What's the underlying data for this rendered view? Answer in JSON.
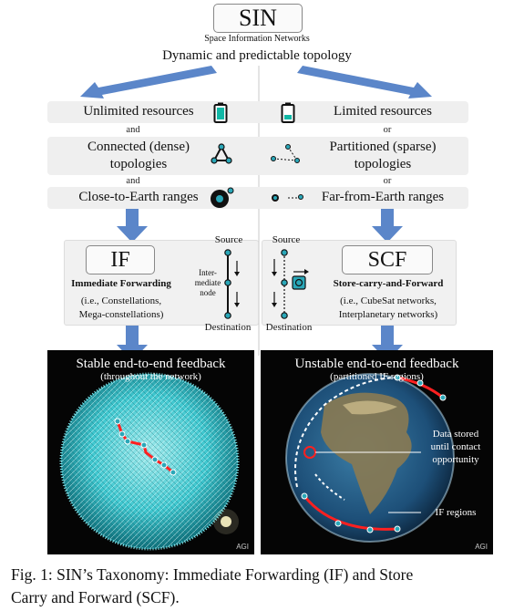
{
  "header": {
    "title": "SIN",
    "subtitle": "Space Information Networks",
    "topology": "Dynamic and predictable topology"
  },
  "rows": [
    {
      "left": "Unlimited resources",
      "right": "Limited resources"
    },
    {
      "left_line1": "Connected (dense)",
      "left_line2": "topologies",
      "right_line1": "Partitioned (sparse)",
      "right_line2": "topologies"
    },
    {
      "left": "Close-to-Earth ranges",
      "right": "Far-from-Earth ranges"
    }
  ],
  "connectors": {
    "left1": "and",
    "left2": "and",
    "right1": "or",
    "right2": "or"
  },
  "if_panel": {
    "abbr": "IF",
    "name": "Immediate Forwarding",
    "examples_line1": "(i.e., Constellations,",
    "examples_line2": "Mega-constellations)",
    "source": "Source",
    "destination": "Destination",
    "node_line1": "Inter-",
    "node_line2": "mediate",
    "node_line3": "node"
  },
  "scf_panel": {
    "abbr": "SCF",
    "name": "Store-carry-and-Forward",
    "examples_line1": "(i.e., CubeSat networks,",
    "examples_line2": "Interplanetary networks)",
    "source": "Source",
    "destination": "Destination"
  },
  "left_image": {
    "title": "Stable end-to-end feedback",
    "subtitle": "(throughout the network)",
    "watermark": "AGI"
  },
  "right_image": {
    "title": "Unstable end-to-end feedback",
    "subtitle": "(partitioned IF regions)",
    "annotation_line1": "Data stored",
    "annotation_line2": "until contact",
    "annotation_line3": "opportunity",
    "regions_label": "IF regions",
    "watermark": "AGI"
  },
  "caption": {
    "line1": "Fig. 1: SIN’s Taxonomy: Immediate Forwarding (IF) and Store",
    "line2": "Carry and Forward (SCF)."
  },
  "colors": {
    "arrow": "#5b86c9",
    "node": "#2aa7b8",
    "path": "#e02020",
    "panel": "#f1f1f1"
  }
}
